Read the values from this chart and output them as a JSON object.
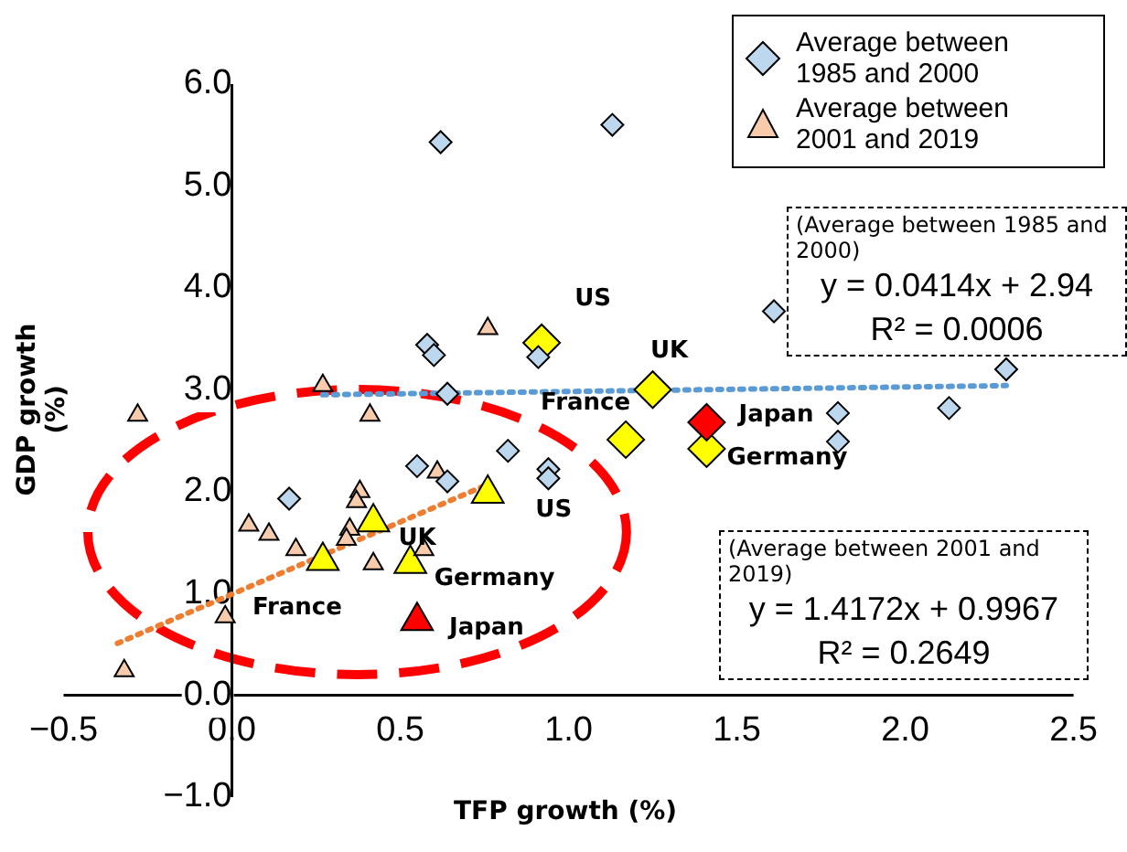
{
  "chart_data": {
    "type": "scatter",
    "xlabel": "TFP growth (%)",
    "ylabel": "GDP growth (%)",
    "xlim": [
      -0.5,
      2.5
    ],
    "ylim": [
      -1,
      6
    ],
    "xticks": [
      {
        "value": -0.5,
        "label": "−0.5"
      },
      {
        "value": 0,
        "label": "0.0"
      },
      {
        "value": 0.5,
        "label": "0.5"
      },
      {
        "value": 1,
        "label": "1.0"
      },
      {
        "value": 1.5,
        "label": "1.5"
      },
      {
        "value": 2,
        "label": "2.0"
      },
      {
        "value": 2.5,
        "label": "2.5"
      }
    ],
    "yticks": [
      {
        "value": -1,
        "label": "−1.0"
      },
      {
        "value": 0,
        "label": "0.0"
      },
      {
        "value": 1,
        "label": "1.0"
      },
      {
        "value": 2,
        "label": "2.0"
      },
      {
        "value": 3,
        "label": "3.0"
      },
      {
        "value": 4,
        "label": "4.0"
      },
      {
        "value": 5,
        "label": "5.0"
      },
      {
        "value": 6,
        "label": "6.0"
      }
    ],
    "grid": false,
    "legend": "top right",
    "series": [
      {
        "name": "Average between 1985 and 2000",
        "color": "#bdd7ee",
        "marker": "diamond",
        "x": [
          0.62,
          1.13,
          0.58,
          0.6,
          0.91,
          0.64,
          1.61,
          2.3,
          2.13,
          1.8,
          1.8,
          0.82,
          0.55,
          0.64,
          0.94,
          0.94,
          0.17
        ],
        "values": [
          5.43,
          5.6,
          3.44,
          3.34,
          3.32,
          2.96,
          3.77,
          3.2,
          2.82,
          2.77,
          2.49,
          2.4,
          2.25,
          2.1,
          2.22,
          2.13,
          1.93
        ]
      },
      {
        "name": "Average between 2001 and 2019",
        "color": "#f8cbad",
        "marker": "triangle",
        "x": [
          -0.28,
          0.27,
          0.41,
          0.76,
          0.61,
          0.38,
          0.37,
          0.05,
          0.11,
          0.35,
          0.34,
          0.19,
          0.42,
          0.57,
          -0.02,
          -0.32
        ],
        "values": [
          2.75,
          3.04,
          2.75,
          3.6,
          2.19,
          2.0,
          1.9,
          1.67,
          1.58,
          1.63,
          1.53,
          1.43,
          1.29,
          1.43,
          0.77,
          0.24
        ]
      },
      {
        "marker": "diamond",
        "colors": [
          "#ffff00",
          "#ffff00",
          "#ffff00",
          "#ffff00",
          "#ff0000"
        ],
        "x": [
          0.92,
          1.25,
          1.17,
          1.41,
          1.41
        ],
        "values": [
          3.46,
          3.0,
          2.51,
          2.42,
          2.68
        ]
      },
      {
        "marker": "triangle",
        "colors": [
          "#ffff00",
          "#ffff00",
          "#ffff00",
          "#ffff00",
          "#ff0000"
        ],
        "x": [
          0.76,
          0.42,
          0.27,
          0.53,
          0.55
        ],
        "values": [
          1.98,
          1.7,
          1.32,
          1.29,
          0.73
        ]
      },
      {
        "type": "line",
        "color": "#5b9bd5",
        "line_style": "dotted",
        "marker": "none",
        "x": [
          0.27,
          2.3
        ],
        "values": [
          2.95,
          3.04
        ]
      },
      {
        "type": "line",
        "color": "#ed7d31",
        "line_style": "dotted",
        "marker": "none",
        "x": [
          -0.34,
          0.76
        ],
        "values": [
          0.51,
          2.07
        ]
      }
    ],
    "annotations": [
      {
        "text": "US",
        "x": 0.92,
        "y": 3.46
      },
      {
        "text": "UK",
        "x": 1.25,
        "y": 3.0
      },
      {
        "text": "France",
        "x": 1.17,
        "y": 2.51
      },
      {
        "text": "Japan",
        "x": 1.41,
        "y": 2.68
      },
      {
        "text": "Germany",
        "x": 1.41,
        "y": 2.42
      },
      {
        "text": "US",
        "x": 0.76,
        "y": 1.98
      },
      {
        "text": "UK",
        "x": 0.42,
        "y": 1.7
      },
      {
        "text": "France",
        "x": 0.27,
        "y": 1.32
      },
      {
        "text": "Germany",
        "x": 0.53,
        "y": 1.29
      },
      {
        "text": "Japan",
        "x": 0.55,
        "y": 0.73
      },
      "(Average between 1985 and 2000)",
      "y = 0.0414x + 2.94",
      "R² = 0.0006",
      "(Average between 2001 and 2019)",
      "y = 1.4172x + 0.9967",
      "R² = 0.2649"
    ]
  }
}
